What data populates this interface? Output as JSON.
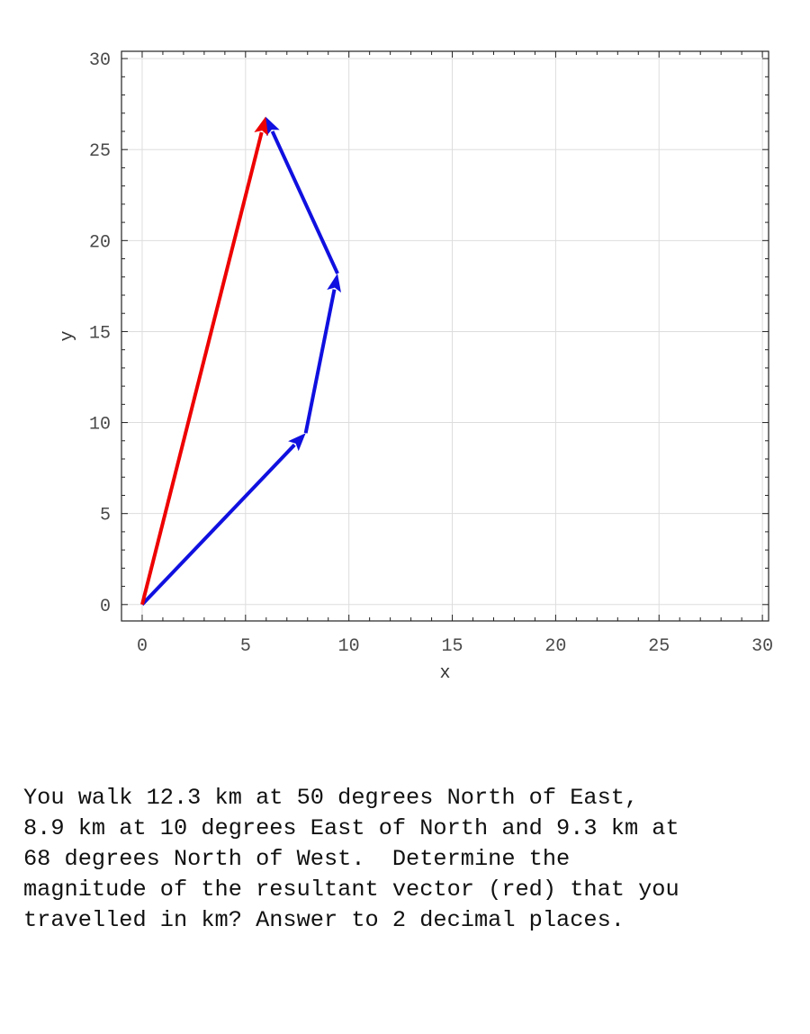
{
  "chart_data": {
    "type": "vector-diagram",
    "xlabel": "x",
    "ylabel": "y",
    "xlim": [
      -1,
      30.3
    ],
    "ylim": [
      -0.9,
      30.4
    ],
    "x_ticks": [
      0,
      5,
      10,
      15,
      20,
      25,
      30
    ],
    "y_ticks": [
      0,
      5,
      10,
      15,
      20,
      25,
      30
    ],
    "grid": true,
    "colors": {
      "component": "#1010e0",
      "resultant": "#ee0000",
      "grid": "#dddddd",
      "frame": "#222222"
    },
    "vectors": [
      {
        "role": "component",
        "from": [
          0,
          0
        ],
        "to": [
          7.91,
          9.42
        ],
        "color": "#1010e0"
      },
      {
        "role": "component",
        "from": [
          7.91,
          9.42
        ],
        "to": [
          9.45,
          18.19
        ],
        "color": "#1010e0"
      },
      {
        "role": "component",
        "from": [
          9.45,
          18.19
        ],
        "to": [
          5.97,
          26.81
        ],
        "color": "#1010e0"
      },
      {
        "role": "resultant",
        "from": [
          0,
          0
        ],
        "to": [
          5.97,
          26.81
        ],
        "color": "#ee0000"
      }
    ]
  },
  "question": {
    "lines": [
      "You walk 12.3 km at 50 degrees North of East,",
      "8.9 km at 10 degrees East of North and 9.3 km at",
      "68 degrees North of West.  Determine the",
      "magnitude of the resultant vector (red) that you",
      "travelled in km? Answer to 2 decimal places."
    ]
  }
}
